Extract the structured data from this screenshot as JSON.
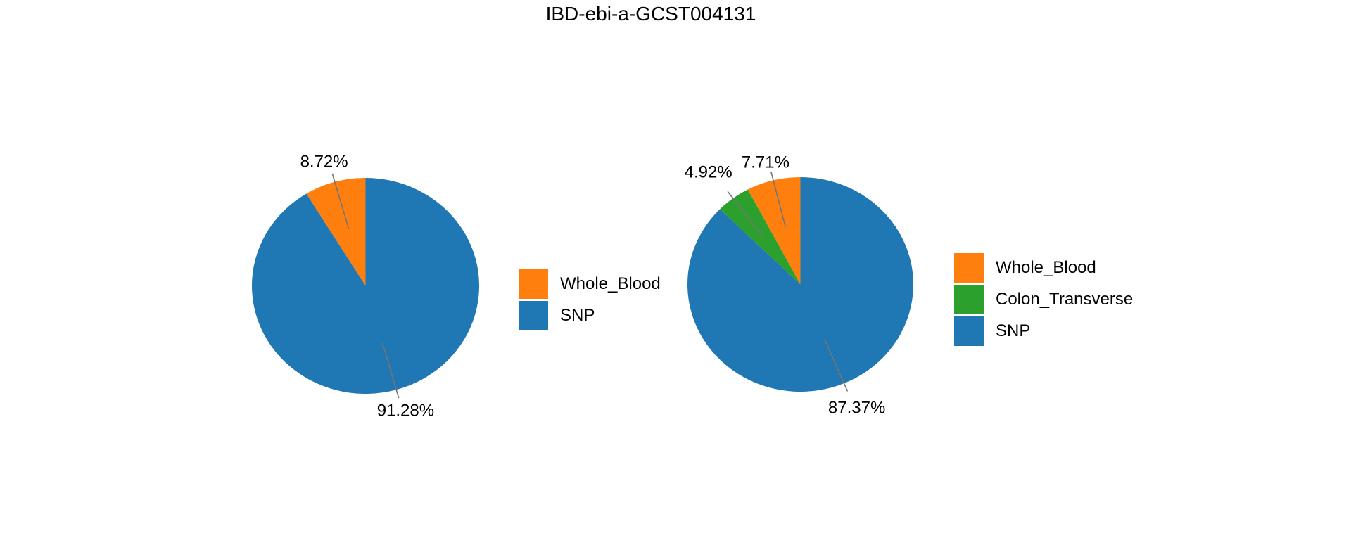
{
  "title": "IBD-ebi-a-GCST004131",
  "colors": {
    "orange": "#ff7f0e",
    "green": "#2ca02c",
    "blue": "#1f77b4",
    "leader_line": "#757575",
    "text": "#000000",
    "background": "#ffffff"
  },
  "chart_data": [
    {
      "type": "pie",
      "name": "left-pie",
      "categories": [
        "Whole_Blood",
        "SNP"
      ],
      "values": [
        8.72,
        91.28
      ],
      "labels": [
        "8.72%",
        "91.28%"
      ],
      "colors": [
        "#ff7f0e",
        "#1f77b4"
      ],
      "start_angle_deg": 90,
      "direction": "counterclockwise",
      "legend": {
        "entries": [
          "Whole_Blood",
          "SNP"
        ],
        "position": "right-of-pie"
      }
    },
    {
      "type": "pie",
      "name": "right-pie",
      "categories": [
        "Whole_Blood",
        "Colon_Transverse",
        "SNP"
      ],
      "values": [
        7.71,
        4.92,
        87.37
      ],
      "labels": [
        "7.71%",
        "4.92%",
        "87.37%"
      ],
      "colors": [
        "#ff7f0e",
        "#2ca02c",
        "#1f77b4"
      ],
      "start_angle_deg": 90,
      "direction": "counterclockwise",
      "legend": {
        "entries": [
          "Whole_Blood",
          "Colon_Transverse",
          "SNP"
        ],
        "position": "right-of-pie"
      }
    }
  ]
}
